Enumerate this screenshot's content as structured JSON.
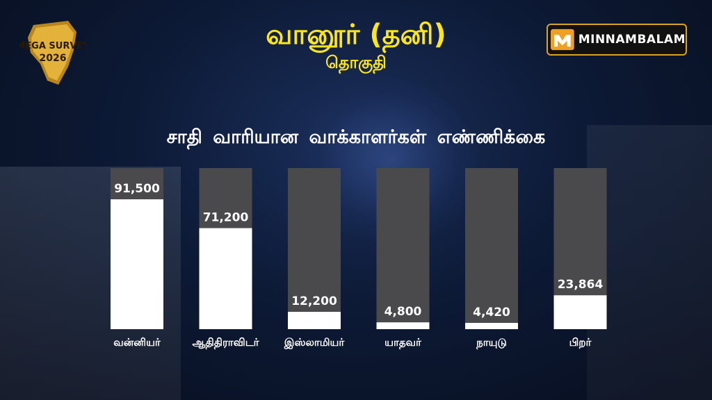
{
  "header": {
    "title": "வானூர் (தனி)",
    "subtitle": "தொகுதி",
    "logo_text": "MEGA SURVEY 2026",
    "brand": "MINNAMBALAM"
  },
  "colors": {
    "title": "#ffe61a",
    "bar_track": "#4a4a4d",
    "bar_fill": "#ffffff",
    "brand_border": "#d9a520"
  },
  "chart_data": {
    "type": "bar",
    "title": "சாதி வாரியான வாக்காளர்கள் எண்ணிக்கை",
    "categories": [
      "வன்னியர்",
      "ஆதிதிராவிடர்",
      "இஸ்லாமியர்",
      "யாதவர்",
      "நாயுடு",
      "பிறர்"
    ],
    "values": [
      91500,
      71200,
      12200,
      4800,
      4420,
      23864
    ],
    "value_labels": [
      "91,500",
      "71,200",
      "12,200",
      "4,800",
      "4,420",
      "23,864"
    ],
    "ylim": [
      0,
      92000
    ],
    "grid": false,
    "legend": "none"
  }
}
